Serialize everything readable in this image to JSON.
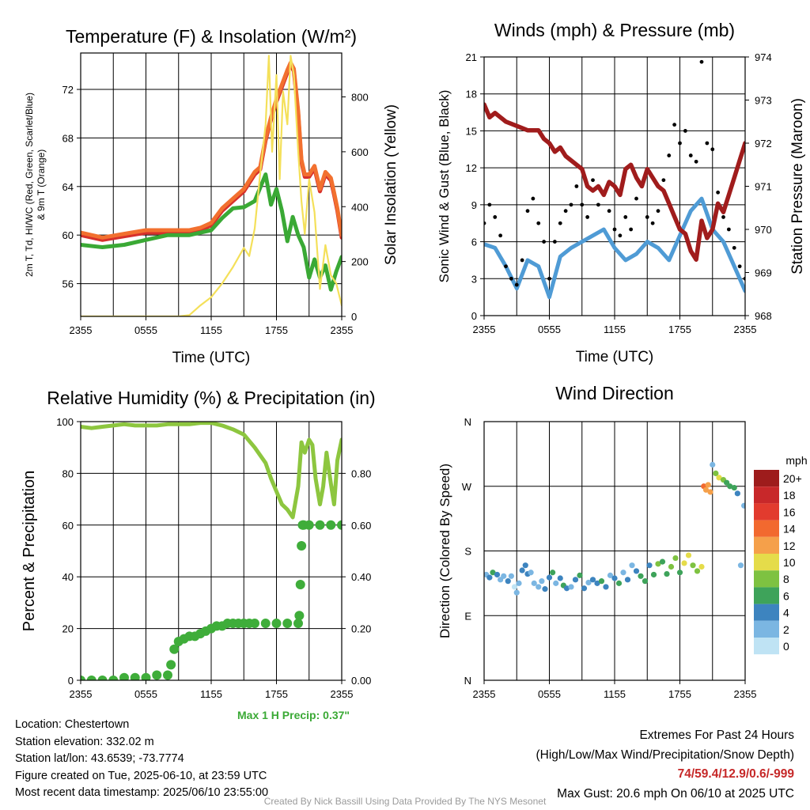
{
  "chart_data": [
    {
      "type": "line",
      "title": "Temperature (F) & Insolation (W/m²)",
      "xlabel": "Time (UTC)",
      "ylabel": "2m T, Td, HI/WC (Red, Green, Scarlet/Blue) & 9m T (Orange)",
      "y2label": "Solar Insolation (Yellow)",
      "xticks": [
        "2355",
        "0555",
        "1155",
        "1755",
        "2355"
      ],
      "yticks": [
        56,
        60,
        64,
        68,
        72
      ],
      "y2ticks": [
        0,
        200,
        400,
        600,
        800
      ],
      "ylim": [
        53.3,
        75.0
      ],
      "y2lim": [
        0,
        960
      ],
      "series": [
        {
          "name": "2m T",
          "color": "#d7302b",
          "x": [
            0,
            2,
            4,
            6,
            8,
            10,
            11,
            12,
            13,
            14,
            15,
            16,
            16.5,
            17,
            17.5,
            18,
            18.5,
            19,
            19.3,
            19.6,
            20,
            20.3,
            20.6,
            21,
            21.5,
            22,
            22.5,
            23,
            23.3,
            23.6,
            24
          ],
          "y": [
            60.0,
            59.6,
            59.9,
            60.2,
            60.2,
            60.2,
            60.4,
            60.8,
            62.0,
            62.8,
            63.6,
            65.0,
            65.4,
            67.8,
            69.5,
            71.0,
            72.2,
            73.4,
            74.0,
            73.5,
            70.0,
            66.0,
            64.8,
            64.8,
            65.5,
            63.6,
            65.0,
            64.5,
            63.3,
            62.0,
            59.8
          ]
        },
        {
          "name": "HI/WC",
          "color": "#f2702f",
          "x": [
            0,
            2,
            4,
            6,
            8,
            10,
            11,
            12,
            13,
            14,
            15,
            16,
            16.5,
            17,
            17.5,
            18,
            18.5,
            19,
            19.3,
            19.6,
            20,
            20.3,
            20.6,
            21,
            21.5,
            22,
            22.5,
            23,
            23.3,
            23.6,
            24
          ],
          "y": [
            60.2,
            59.8,
            60.1,
            60.4,
            60.4,
            60.4,
            60.6,
            61.0,
            62.2,
            63.0,
            63.8,
            65.2,
            65.6,
            68.0,
            69.7,
            71.2,
            72.4,
            73.6,
            74.2,
            73.7,
            70.2,
            66.2,
            65.0,
            65.0,
            65.7,
            63.8,
            65.2,
            64.7,
            63.5,
            62.2,
            60.0
          ]
        },
        {
          "name": "Td",
          "color": "#3aa935",
          "x": [
            0,
            2,
            4,
            6,
            8,
            10,
            11,
            12,
            13,
            14,
            15,
            16,
            17,
            17.5,
            18,
            18.5,
            19,
            19.5,
            20,
            20.5,
            21,
            21.5,
            22,
            22.5,
            23,
            23.5,
            24
          ],
          "y": [
            59.2,
            59.0,
            59.2,
            59.6,
            60.0,
            60.0,
            60.2,
            60.4,
            61.4,
            62.2,
            62.3,
            62.8,
            65.0,
            62.5,
            63.8,
            62.0,
            59.5,
            61.5,
            60.0,
            59.0,
            56.5,
            58.0,
            56.5,
            57.5,
            55.5,
            57.0,
            58.2
          ]
        },
        {
          "name": "Solar Insolation",
          "color": "#f4e05a",
          "axis": "y2",
          "x": [
            0,
            3,
            6,
            8,
            9,
            10,
            11,
            12,
            13,
            14,
            15,
            15.5,
            16,
            16.5,
            17,
            17.3,
            17.6,
            18,
            18.3,
            18.6,
            19,
            19.3,
            19.6,
            20,
            20.3,
            20.6,
            21,
            21.5,
            22,
            22.5,
            23,
            23.5,
            24
          ],
          "y": [
            0,
            0,
            0,
            0,
            0,
            5,
            40,
            70,
            120,
            180,
            250,
            220,
            320,
            520,
            700,
            950,
            600,
            880,
            500,
            820,
            700,
            950,
            880,
            600,
            420,
            300,
            500,
            380,
            100,
            260,
            150,
            120,
            40
          ]
        }
      ]
    },
    {
      "type": "line",
      "title": "Winds (mph) & Pressure (mb)",
      "xlabel": "Time (UTC)",
      "ylabel": "Sonic Wind & Gust (Blue, Black)",
      "y2label": "Station Pressure (Maroon)",
      "xticks": [
        "2355",
        "0555",
        "1155",
        "1755",
        "2355"
      ],
      "yticks": [
        0,
        3,
        6,
        9,
        12,
        15,
        18,
        21
      ],
      "y2ticks": [
        968,
        969,
        970,
        971,
        972,
        973,
        974
      ],
      "ylim": [
        0,
        21
      ],
      "y2lim": [
        968,
        974
      ],
      "series": [
        {
          "name": "Sonic Wind",
          "color": "#4f9bd5",
          "x": [
            0,
            1,
            2,
            3,
            4,
            5,
            6,
            7,
            8,
            9,
            10,
            11,
            12,
            13,
            14,
            15,
            16,
            17,
            18,
            19,
            20,
            21,
            22,
            23,
            24
          ],
          "y": [
            5.8,
            5.5,
            4.0,
            2.2,
            4.5,
            4.0,
            1.5,
            4.8,
            5.5,
            6.0,
            6.5,
            7.0,
            5.5,
            4.5,
            5.0,
            6.0,
            5.5,
            4.5,
            6.5,
            8.5,
            9.5,
            7.0,
            6.0,
            4.0,
            2.0
          ]
        },
        {
          "name": "Gust",
          "color": "#000000",
          "style": "points",
          "x": [
            0,
            0.5,
            1,
            1.5,
            2,
            2.5,
            3,
            3.5,
            4,
            4.5,
            5,
            5.5,
            6,
            6.5,
            7,
            7.5,
            8,
            8.5,
            9,
            9.5,
            10,
            10.5,
            11,
            11.5,
            12,
            12.5,
            13,
            13.5,
            14,
            14.5,
            15,
            15.5,
            16,
            16.5,
            17,
            17.5,
            18,
            18.5,
            19,
            19.5,
            20,
            20.5,
            21,
            21.5,
            22,
            22.5,
            23,
            23.5,
            24
          ],
          "y": [
            7.5,
            9.0,
            8.0,
            6.5,
            4.0,
            3.0,
            2.5,
            4.5,
            8.5,
            9.5,
            7.5,
            6.0,
            3.0,
            6.0,
            7.5,
            8.5,
            9.0,
            10.5,
            9.0,
            8.0,
            11.0,
            9.0,
            10.0,
            8.5,
            7.0,
            6.5,
            8.0,
            7.0,
            9.5,
            10.5,
            8.0,
            7.5,
            8.5,
            11.0,
            13.0,
            15.5,
            14.0,
            15.0,
            13.0,
            12.5,
            20.6,
            14.0,
            13.5,
            10.0,
            8.0,
            7.0,
            5.5,
            4.0,
            3.0
          ]
        },
        {
          "name": "Station Pressure",
          "color": "#a01c1c",
          "axis": "y2",
          "x": [
            0,
            0.5,
            1,
            2,
            3,
            4,
            5,
            5.5,
            6,
            6.5,
            7,
            7.5,
            8,
            8.5,
            9,
            9.5,
            10,
            10.5,
            11,
            11.5,
            12,
            12.5,
            13,
            13.5,
            14,
            14.5,
            15,
            15.5,
            16,
            16.5,
            17,
            17.5,
            18,
            18.5,
            19,
            19.5,
            20,
            20.5,
            21,
            21.5,
            22,
            22.5,
            23,
            23.5,
            24
          ],
          "y": [
            972.9,
            972.6,
            972.7,
            972.5,
            972.4,
            972.3,
            972.3,
            972.1,
            972.0,
            971.8,
            971.9,
            971.7,
            971.6,
            971.5,
            971.4,
            971.0,
            970.9,
            971.0,
            970.8,
            971.1,
            971.0,
            970.8,
            971.4,
            971.5,
            971.2,
            971.0,
            971.4,
            971.2,
            971.0,
            970.9,
            970.6,
            970.3,
            970.0,
            969.9,
            969.5,
            969.3,
            970.2,
            969.8,
            970.0,
            970.6,
            970.4,
            970.8,
            971.2,
            971.6,
            972.0
          ]
        }
      ]
    },
    {
      "type": "line",
      "title": "Relative Humidity (%) & Precipitation (in)",
      "ylabel": "Percent & Precipitation",
      "xticks": [
        "2355",
        "0555",
        "1155",
        "1755",
        "2355"
      ],
      "yticks": [
        0,
        20,
        40,
        60,
        80,
        100
      ],
      "y2ticks": [
        "0.00",
        "0.20",
        "0.40",
        "0.60",
        "0.80"
      ],
      "ylim": [
        0,
        100
      ],
      "y2lim": [
        0,
        1.0
      ],
      "series": [
        {
          "name": "Relative Humidity",
          "color": "#8dc63f",
          "x": [
            0,
            1,
            2,
            3,
            4,
            5,
            6,
            7,
            8,
            9,
            10,
            11,
            12,
            13,
            14,
            15,
            16,
            17,
            17.5,
            18,
            18.5,
            19,
            19.5,
            20,
            20.3,
            20.6,
            21,
            21.3,
            21.6,
            22,
            22.3,
            22.6,
            23,
            23.3,
            23.6,
            24
          ],
          "y": [
            98,
            97.5,
            98,
            98.5,
            99,
            98.5,
            98.5,
            98.5,
            99,
            99,
            99,
            99.5,
            99.5,
            98.5,
            97,
            95,
            90,
            84,
            78,
            73,
            68,
            66,
            63,
            75,
            92,
            88,
            93,
            91,
            78,
            68,
            75,
            88,
            76,
            68,
            85,
            93
          ]
        },
        {
          "name": "Precipitation",
          "color": "#3fad3a",
          "axis": "y2",
          "style": "points",
          "x": [
            0,
            1,
            2,
            3,
            4,
            5,
            6,
            7,
            8,
            8.3,
            8.6,
            9,
            9.5,
            10,
            10.5,
            11,
            11.5,
            12,
            12.5,
            13,
            13.5,
            14,
            14.5,
            15,
            15.5,
            16,
            17,
            18,
            19,
            20,
            20.1,
            20.2,
            20.3,
            20.4,
            20.5,
            21,
            22,
            23,
            24
          ],
          "y": [
            0,
            0,
            0,
            0,
            0.01,
            0.01,
            0.01,
            0.02,
            0.02,
            0.06,
            0.12,
            0.15,
            0.16,
            0.17,
            0.17,
            0.18,
            0.19,
            0.2,
            0.21,
            0.21,
            0.22,
            0.22,
            0.22,
            0.22,
            0.22,
            0.22,
            0.22,
            0.22,
            0.22,
            0.22,
            0.25,
            0.37,
            0.52,
            0.6,
            0.6,
            0.6,
            0.6,
            0.6,
            0.6
          ]
        }
      ]
    },
    {
      "type": "scatter",
      "title": "Wind Direction",
      "ylabel": "Direction (Colored By Speed)",
      "xticks": [
        "2355",
        "0555",
        "1155",
        "1755",
        "2355"
      ],
      "yticks": [
        "N",
        "E",
        "S",
        "W",
        "N"
      ],
      "ylim": [
        0,
        360
      ],
      "legend": {
        "title": "mph",
        "labels": [
          "20+",
          "18",
          "16",
          "14",
          "12",
          "10",
          "8",
          "6",
          "4",
          "2",
          "0"
        ],
        "colors": [
          "#9e1c1c",
          "#c8282a",
          "#e23b2e",
          "#f2692f",
          "#f5a04a",
          "#e5dc4a",
          "#7ec241",
          "#3ea35a",
          "#3d84bf",
          "#7bb6e2",
          "#bfe3f4"
        ]
      },
      "series": [
        {
          "name": "Wind Direction",
          "x": [
            0.2,
            0.5,
            0.8,
            1.2,
            1.5,
            1.8,
            2.2,
            2.5,
            2.8,
            3.0,
            3.2,
            3.5,
            3.8,
            4.0,
            4.3,
            4.6,
            5.0,
            5.3,
            5.6,
            6.0,
            6.3,
            6.6,
            7.0,
            7.3,
            7.6,
            8.0,
            8.4,
            8.8,
            9.2,
            9.6,
            10.0,
            10.4,
            10.8,
            11.2,
            11.6,
            12.0,
            12.4,
            12.8,
            13.2,
            13.6,
            14.0,
            14.4,
            14.8,
            15.2,
            15.6,
            16.0,
            16.4,
            16.8,
            17.2,
            17.6,
            18.0,
            18.4,
            18.8,
            19.2,
            19.6,
            20.0,
            20.2,
            20.4,
            20.6,
            20.8,
            21.0,
            21.3,
            21.6,
            22.0,
            22.3,
            22.6,
            23.0,
            23.3,
            23.6,
            23.9
          ],
          "y": [
            147,
            143,
            150,
            147,
            140,
            145,
            138,
            145,
            130,
            122,
            135,
            153,
            160,
            148,
            150,
            135,
            130,
            138,
            127,
            143,
            150,
            135,
            142,
            132,
            128,
            130,
            140,
            146,
            128,
            136,
            140,
            135,
            138,
            130,
            146,
            142,
            135,
            150,
            140,
            160,
            152,
            145,
            138,
            160,
            147,
            162,
            165,
            148,
            158,
            170,
            150,
            163,
            174,
            160,
            152,
            158,
            270,
            265,
            272,
            262,
            300,
            288,
            282,
            279,
            275,
            270,
            268,
            260,
            160,
            243
          ],
          "speed": [
            3,
            4,
            7,
            5,
            3,
            2,
            4,
            2,
            1,
            2,
            3,
            4,
            5,
            4,
            3,
            2,
            2,
            3,
            5,
            4,
            6,
            3,
            4,
            6,
            5,
            2,
            4,
            7,
            5,
            3,
            4,
            5,
            7,
            4,
            3,
            5,
            6,
            3,
            4,
            3,
            5,
            6,
            7,
            5,
            6,
            8,
            7,
            6,
            9,
            8,
            7,
            10,
            11,
            9,
            8,
            10,
            14,
            13,
            12,
            13,
            3,
            9,
            10,
            8,
            7,
            6,
            7,
            4,
            2,
            3
          ]
        }
      ]
    }
  ],
  "precip_note": "Max 1 H Precip: 0.37\"",
  "info": {
    "location": "Location: Chestertown",
    "elevation": "Station elevation: 332.02 m",
    "latlon": "Station lat/lon: 43.6539; -73.7774",
    "created": "Figure created on Tue, 2025-06-10, at 23:59 UTC",
    "recent": "Most recent data timestamp: 2025/06/10 23:55:00"
  },
  "extremes": {
    "title": "Extremes For Past 24 Hours",
    "subtitle": "(High/Low/Max Wind/Precipitation/Snow Depth)",
    "values": "74/59.4/12.9/0.6/-999",
    "gust": "Max Gust: 20.6 mph On 06/10 at 2025 UTC"
  },
  "credit": "Created By Nick Bassill Using Data Provided By The NYS Mesonet"
}
